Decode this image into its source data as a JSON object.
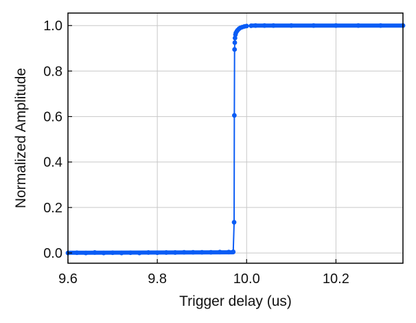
{
  "chart_data": {
    "type": "line",
    "title": "",
    "xlabel": "Trigger delay (us)",
    "ylabel": "Normalized Amplitude",
    "xlim": [
      9.6,
      10.35
    ],
    "ylim": [
      -0.045,
      1.055
    ],
    "xticks": [
      9.6,
      9.8,
      10.0,
      10.2
    ],
    "xtick_labels": [
      "9.6",
      "9.8",
      "10.0",
      "10.2"
    ],
    "yticks": [
      0.0,
      0.2,
      0.4,
      0.6,
      0.8,
      1.0
    ],
    "ytick_labels": [
      "0.0",
      "0.2",
      "0.4",
      "0.6",
      "0.8",
      "1.0"
    ],
    "grid": true,
    "legend": "none",
    "series": [
      {
        "color": "#0a5cf5",
        "marker": "circle",
        "x": [
          9.6,
          9.62,
          9.64,
          9.66,
          9.68,
          9.7,
          9.72,
          9.74,
          9.76,
          9.78,
          9.8,
          9.82,
          9.84,
          9.86,
          9.88,
          9.9,
          9.92,
          9.94,
          9.96,
          9.97,
          9.972,
          9.9725,
          9.973,
          9.9735,
          9.974,
          9.975,
          9.976,
          9.978,
          9.98,
          9.983,
          9.986,
          9.99,
          9.995,
          10.0,
          10.01,
          10.02,
          10.04,
          10.06,
          10.1,
          10.15,
          10.2,
          10.25,
          10.3,
          10.35
        ],
        "y": [
          0.0,
          0.001,
          0.0,
          0.002,
          0.0,
          0.001,
          0.0,
          0.001,
          0.0,
          0.002,
          0.001,
          0.002,
          0.002,
          0.003,
          0.003,
          0.003,
          0.003,
          0.004,
          0.004,
          0.005,
          0.135,
          0.605,
          0.895,
          0.925,
          0.945,
          0.96,
          0.968,
          0.975,
          0.98,
          0.986,
          0.99,
          0.993,
          0.996,
          0.998,
          0.999,
          1.0,
          1.0,
          1.0,
          1.0,
          1.0,
          1.0,
          1.0,
          1.0,
          1.0
        ]
      }
    ]
  }
}
